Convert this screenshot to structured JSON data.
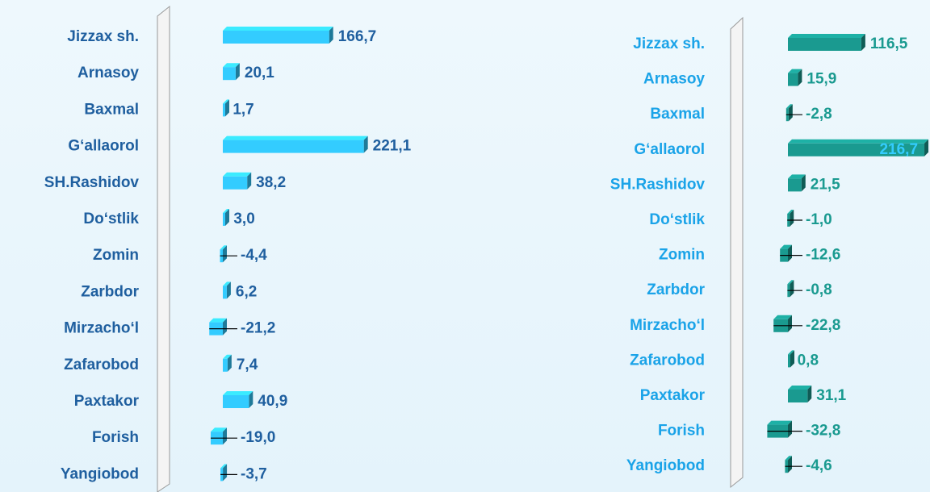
{
  "chart_data": [
    {
      "type": "bar",
      "orientation": "horizontal",
      "color": "#33ccff",
      "label_color": "#1f5f9f",
      "value_color": "#1f5f9f",
      "categories": [
        "Jizzax sh.",
        "Arnasoy",
        "Baxmal",
        "G‘allaorol",
        "SH.Rashidov",
        "Do‘stlik",
        "Zomin",
        "Zarbdor",
        "Mirzacho‘l",
        "Zafarobod",
        "Paxtakor",
        "Forish",
        "Yangiobod"
      ],
      "values": [
        166.7,
        20.1,
        1.7,
        221.1,
        38.2,
        3.0,
        -4.4,
        6.2,
        -21.2,
        7.4,
        40.9,
        -19.0,
        -3.7
      ],
      "value_labels": [
        "166,7",
        "20,1",
        "1,7",
        "221,1",
        "38,2",
        "3,0",
        "-4,4",
        "6,2",
        "-21,2",
        "7,4",
        "40,9",
        "-19,0",
        "-3,7"
      ]
    },
    {
      "type": "bar",
      "orientation": "horizontal",
      "color": "#1a9a90",
      "label_color": "#1aa3e8",
      "value_color": "#1a9a90",
      "categories": [
        "Jizzax sh.",
        "Arnasoy",
        "Baxmal",
        "G‘allaorol",
        "SH.Rashidov",
        "Do‘stlik",
        "Zomin",
        "Zarbdor",
        "Mirzacho‘l",
        "Zafarobod",
        "Paxtakor",
        "Forish",
        "Yangiobod"
      ],
      "values": [
        116.5,
        15.9,
        -2.8,
        216.7,
        21.5,
        -1.0,
        -12.6,
        -0.8,
        -22.8,
        0.8,
        31.1,
        -32.8,
        -4.6
      ],
      "value_labels": [
        "116,5",
        "15,9",
        "-2,8",
        "216,7",
        "21,5",
        "-1,0",
        "-12,6",
        "-0,8",
        "-22,8",
        "0,8",
        "31,1",
        "-32,8",
        "-4,6"
      ]
    }
  ]
}
